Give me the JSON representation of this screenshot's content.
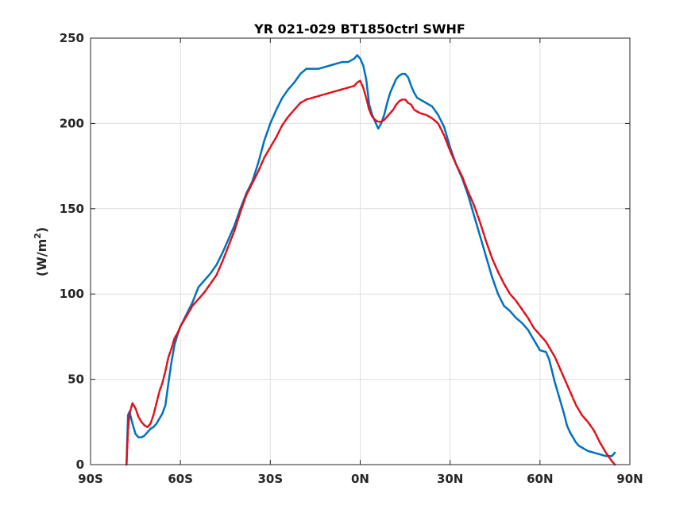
{
  "chart_data": {
    "type": "line",
    "title": "YR 021-029 BT1850ctrl     SWHF",
    "ylabel": "(W/m",
    "ylabel_sup": "2",
    "ylabel_close": ")",
    "xlabel": "",
    "xlim": [
      -90,
      90
    ],
    "ylim": [
      0,
      250
    ],
    "grid": true,
    "x_ticks": [
      {
        "value": -90,
        "label": "90S"
      },
      {
        "value": -60,
        "label": "60S"
      },
      {
        "value": -30,
        "label": "30S"
      },
      {
        "value": 0,
        "label": "0N"
      },
      {
        "value": 30,
        "label": "30N"
      },
      {
        "value": 60,
        "label": "60N"
      },
      {
        "value": 90,
        "label": "90N"
      }
    ],
    "y_ticks": [
      {
        "value": 0,
        "label": "0"
      },
      {
        "value": 50,
        "label": "50"
      },
      {
        "value": 100,
        "label": "100"
      },
      {
        "value": 150,
        "label": "150"
      },
      {
        "value": 200,
        "label": "200"
      },
      {
        "value": 250,
        "label": "250"
      }
    ],
    "series": [
      {
        "color": "#0072BD",
        "dash": "solid",
        "x": [
          -78,
          -77.5,
          -77,
          -76,
          -75,
          -74,
          -73,
          -72,
          -71,
          -70,
          -69,
          -68,
          -67,
          -66,
          -65,
          -64,
          -63,
          -62,
          -61,
          -60,
          -58,
          -56,
          -54,
          -52,
          -50,
          -48,
          -46,
          -44,
          -42,
          -40,
          -38,
          -36,
          -34,
          -32,
          -30,
          -28,
          -26,
          -24,
          -22,
          -20,
          -18,
          -16,
          -14,
          -12,
          -10,
          -8,
          -6,
          -4,
          -2,
          -1,
          0,
          1,
          2,
          3,
          4,
          5,
          6,
          7,
          8,
          9,
          10,
          11,
          12,
          13,
          14,
          15,
          16,
          17,
          18,
          19,
          20,
          22,
          24,
          26,
          28,
          30,
          32,
          34,
          36,
          38,
          40,
          42,
          44,
          46,
          48,
          50,
          52,
          54,
          56,
          58,
          60,
          62,
          63,
          64,
          65,
          66,
          67,
          68,
          69,
          70,
          71,
          72,
          73,
          74,
          75,
          76,
          78,
          80,
          82,
          84,
          85
        ],
        "y": [
          0,
          29,
          31,
          24,
          18,
          16,
          16,
          17,
          19,
          21,
          22,
          24,
          27,
          30,
          35,
          48,
          60,
          70,
          76,
          81,
          88,
          95,
          104,
          108,
          112,
          117,
          124,
          132,
          140,
          150,
          159,
          166,
          177,
          190,
          200,
          208,
          215,
          220,
          224,
          229,
          232,
          232,
          232,
          233,
          234,
          235,
          236,
          236,
          238,
          240,
          238,
          234,
          226,
          211,
          205,
          201,
          197,
          200,
          205,
          212,
          218,
          222,
          226,
          228,
          229,
          229,
          227,
          222,
          218,
          215,
          214,
          212,
          210,
          205,
          198,
          186,
          176,
          168,
          158,
          146,
          134,
          122,
          110,
          100,
          93,
          90,
          86,
          83,
          79,
          73,
          67,
          66,
          62,
          55,
          48,
          42,
          36,
          30,
          23,
          19,
          16,
          13,
          11,
          10,
          9,
          8,
          7,
          6,
          5,
          5,
          7
        ]
      },
      {
        "color": "#E0101A",
        "dash": "dashed",
        "x": [
          -78,
          -77.5,
          -77,
          -76,
          -75,
          -74,
          -73,
          -72,
          -71,
          -70,
          -69,
          -68,
          -67,
          -66,
          -65,
          -64,
          -63,
          -62,
          -61,
          -60,
          -58,
          -56,
          -54,
          -52,
          -50,
          -48,
          -46,
          -44,
          -42,
          -40,
          -38,
          -36,
          -34,
          -32,
          -30,
          -28,
          -26,
          -24,
          -22,
          -20,
          -18,
          -16,
          -14,
          -12,
          -10,
          -8,
          -6,
          -4,
          -2,
          -1,
          0,
          1,
          2,
          3,
          4,
          5,
          6,
          7,
          8,
          9,
          10,
          11,
          12,
          13,
          14,
          15,
          16,
          17,
          18,
          19,
          20,
          22,
          24,
          26,
          28,
          30,
          32,
          34,
          36,
          38,
          40,
          42,
          44,
          46,
          48,
          50,
          52,
          54,
          56,
          58,
          60,
          62,
          63,
          64,
          65,
          66,
          67,
          68,
          69,
          70,
          71,
          72,
          73,
          74,
          75,
          76,
          78,
          80,
          82,
          84,
          85
        ],
        "y": [
          0,
          20,
          30,
          36,
          33,
          28,
          25,
          23,
          22,
          24,
          29,
          36,
          43,
          48,
          55,
          63,
          68,
          74,
          77,
          81,
          87,
          93,
          97,
          101,
          106,
          111,
          119,
          128,
          137,
          148,
          158,
          165,
          172,
          180,
          186,
          192,
          199,
          204,
          208,
          212,
          214,
          215,
          216,
          217,
          218,
          219,
          220,
          221,
          222,
          224,
          225,
          221,
          215,
          208,
          204,
          202,
          201,
          201,
          202,
          204,
          206,
          208,
          211,
          213,
          214,
          214,
          212,
          211,
          208,
          207,
          206,
          205,
          203,
          200,
          193,
          184,
          176,
          169,
          160,
          152,
          142,
          131,
          121,
          113,
          106,
          100,
          96,
          91,
          86,
          80,
          76,
          72,
          69,
          66,
          63,
          59,
          55,
          51,
          47,
          43,
          39,
          35,
          32,
          29,
          27,
          25,
          20,
          13,
          7,
          2,
          0
        ]
      }
    ]
  }
}
